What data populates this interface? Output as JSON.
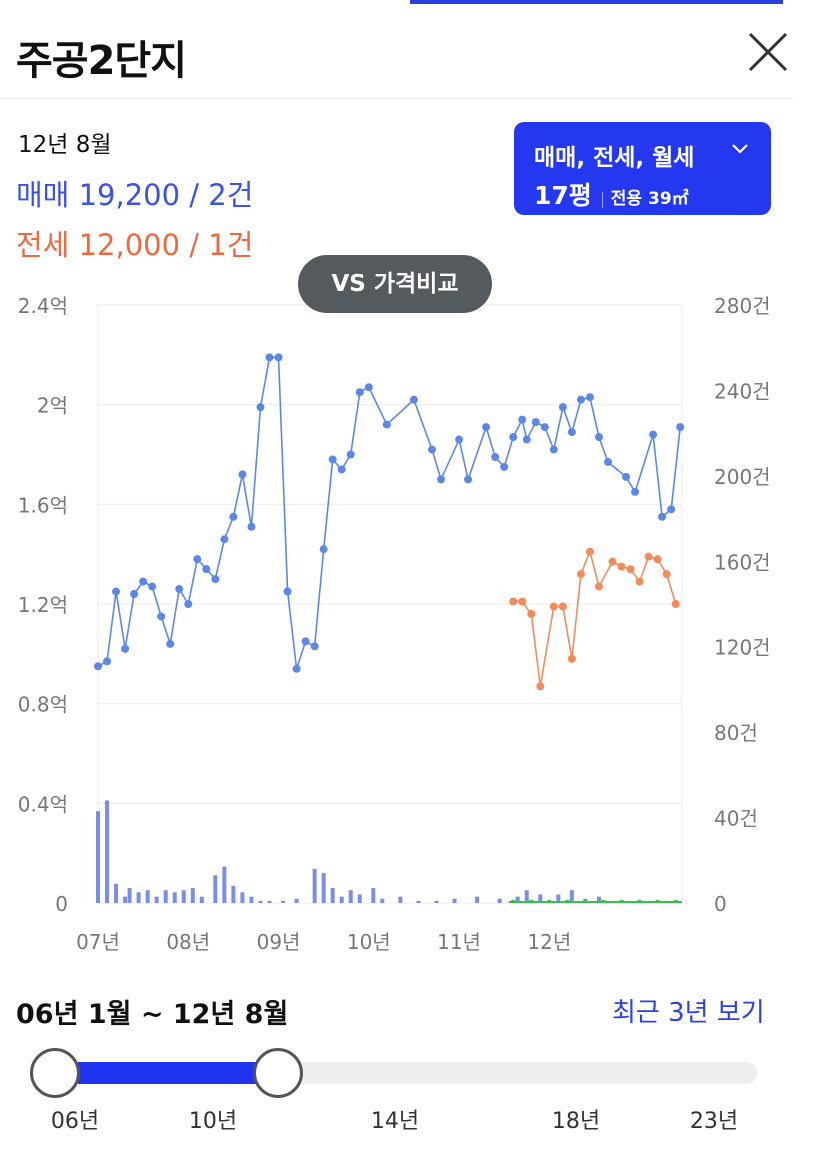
{
  "header": {
    "title": "주공2단지"
  },
  "info": {
    "date": "12년 8월",
    "sale": "매매 19,200 / 2건",
    "jeonse": "전세 12,000 / 1건"
  },
  "filter": {
    "types": "매매, 전세, 월세",
    "pyeong": "17평",
    "area": "전용 39㎡"
  },
  "compare_button": "VS 가격비교",
  "colors": {
    "sale": "#5b88e6",
    "jeonse": "#f58a5a",
    "monthly": "#3cbf4a",
    "volume": "#7a8ee8",
    "accent": "#1f33f0"
  },
  "chart_data": {
    "type": "line",
    "x_ticks": [
      "07년",
      "08년",
      "09년",
      "10년",
      "11년",
      "12년"
    ],
    "y_left_ticks": [
      "0",
      "0.4억",
      "0.8억",
      "1.2억",
      "1.6억",
      "2억",
      "2.4억"
    ],
    "y_right_ticks": [
      "0",
      "40건",
      "80건",
      "120건",
      "160건",
      "200건",
      "240건",
      "280건"
    ],
    "ylim_left": [
      0,
      2.4
    ],
    "ylim_right": [
      0,
      280
    ],
    "grid": true,
    "series": [
      {
        "values": [
          [
            2007.0,
            0.95
          ],
          [
            2007.1,
            0.97
          ],
          [
            2007.2,
            1.25
          ],
          [
            2007.3,
            1.02
          ],
          [
            2007.4,
            1.24
          ],
          [
            2007.5,
            1.29
          ],
          [
            2007.6,
            1.27
          ],
          [
            2007.7,
            1.15
          ],
          [
            2007.8,
            1.04
          ],
          [
            2007.9,
            1.26
          ],
          [
            2008.0,
            1.2
          ],
          [
            2008.1,
            1.38
          ],
          [
            2008.2,
            1.34
          ],
          [
            2008.3,
            1.3
          ],
          [
            2008.4,
            1.46
          ],
          [
            2008.5,
            1.55
          ],
          [
            2008.6,
            1.72
          ],
          [
            2008.7,
            1.51
          ],
          [
            2008.8,
            1.99
          ],
          [
            2008.9,
            2.19
          ],
          [
            2009.0,
            2.19
          ],
          [
            2009.1,
            1.25
          ],
          [
            2009.2,
            0.94
          ],
          [
            2009.3,
            1.05
          ],
          [
            2009.4,
            1.03
          ],
          [
            2009.5,
            1.42
          ],
          [
            2009.6,
            1.78
          ],
          [
            2009.7,
            1.74
          ],
          [
            2009.8,
            1.8
          ],
          [
            2009.9,
            2.05
          ],
          [
            2010.0,
            2.07
          ],
          [
            2010.2,
            1.92
          ],
          [
            2010.5,
            2.02
          ],
          [
            2010.7,
            1.82
          ],
          [
            2010.8,
            1.7
          ],
          [
            2011.0,
            1.86
          ],
          [
            2011.1,
            1.7
          ],
          [
            2011.3,
            1.91
          ],
          [
            2011.4,
            1.79
          ],
          [
            2011.5,
            1.75
          ],
          [
            2011.6,
            1.87
          ],
          [
            2011.7,
            1.94
          ],
          [
            2011.75,
            1.86
          ],
          [
            2011.85,
            1.93
          ],
          [
            2011.95,
            1.91
          ],
          [
            2012.05,
            1.82
          ],
          [
            2012.15,
            1.99
          ],
          [
            2012.25,
            1.89
          ],
          [
            2012.35,
            2.02
          ],
          [
            2012.45,
            2.03
          ],
          [
            2012.55,
            1.87
          ],
          [
            2012.65,
            1.77
          ],
          [
            2012.85,
            1.71
          ],
          [
            2012.95,
            1.65
          ],
          [
            2013.15,
            1.88
          ],
          [
            2013.25,
            1.55
          ],
          [
            2013.35,
            1.58
          ],
          [
            2013.45,
            1.91
          ]
        ]
      },
      {
        "values": [
          [
            2011.6,
            1.21
          ],
          [
            2011.7,
            1.21
          ],
          [
            2011.8,
            1.16
          ],
          [
            2011.9,
            0.87
          ],
          [
            2012.05,
            1.19
          ],
          [
            2012.15,
            1.19
          ],
          [
            2012.25,
            0.98
          ],
          [
            2012.35,
            1.32
          ],
          [
            2012.45,
            1.41
          ],
          [
            2012.55,
            1.27
          ],
          [
            2012.7,
            1.37
          ],
          [
            2012.8,
            1.35
          ],
          [
            2012.9,
            1.34
          ],
          [
            2013.0,
            1.29
          ],
          [
            2013.1,
            1.39
          ],
          [
            2013.2,
            1.38
          ],
          [
            2013.3,
            1.32
          ],
          [
            2013.4,
            1.2
          ]
        ]
      }
    ],
    "volume_bars": [
      [
        2007.0,
        43
      ],
      [
        2007.1,
        48
      ],
      [
        2007.2,
        9
      ],
      [
        2007.3,
        3
      ],
      [
        2007.35,
        7
      ],
      [
        2007.45,
        5
      ],
      [
        2007.55,
        6
      ],
      [
        2007.65,
        3
      ],
      [
        2007.75,
        6
      ],
      [
        2007.85,
        5
      ],
      [
        2007.95,
        6
      ],
      [
        2008.05,
        7
      ],
      [
        2008.15,
        3
      ],
      [
        2008.3,
        13
      ],
      [
        2008.4,
        17
      ],
      [
        2008.5,
        8
      ],
      [
        2008.6,
        5
      ],
      [
        2008.7,
        3
      ],
      [
        2008.8,
        1
      ],
      [
        2008.9,
        1
      ],
      [
        2009.05,
        1
      ],
      [
        2009.2,
        2
      ],
      [
        2009.4,
        16
      ],
      [
        2009.5,
        14
      ],
      [
        2009.6,
        7
      ],
      [
        2009.7,
        3
      ],
      [
        2009.8,
        6
      ],
      [
        2009.9,
        4
      ],
      [
        2010.05,
        7
      ],
      [
        2010.15,
        2
      ],
      [
        2010.35,
        3
      ],
      [
        2010.55,
        1
      ],
      [
        2010.75,
        1
      ],
      [
        2010.95,
        2
      ],
      [
        2011.2,
        3
      ],
      [
        2011.45,
        2
      ],
      [
        2011.65,
        3
      ],
      [
        2011.75,
        6
      ],
      [
        2011.9,
        4
      ],
      [
        2012.1,
        4
      ],
      [
        2012.25,
        6
      ],
      [
        2012.4,
        2
      ],
      [
        2012.55,
        3
      ]
    ],
    "monthly_bars": [
      [
        2011.6,
        1
      ],
      [
        2011.8,
        1
      ],
      [
        2012.0,
        1
      ],
      [
        2012.2,
        1
      ],
      [
        2012.4,
        1
      ],
      [
        2012.6,
        1
      ],
      [
        2012.8,
        1
      ],
      [
        2013.0,
        1
      ],
      [
        2013.2,
        1
      ],
      [
        2013.4,
        1
      ]
    ]
  },
  "range": {
    "label": "06년 1월 ~ 12년 8월",
    "recent_link": "최근 3년 보기",
    "ticks": [
      "06년",
      "10년",
      "14년",
      "18년",
      "23년"
    ]
  }
}
